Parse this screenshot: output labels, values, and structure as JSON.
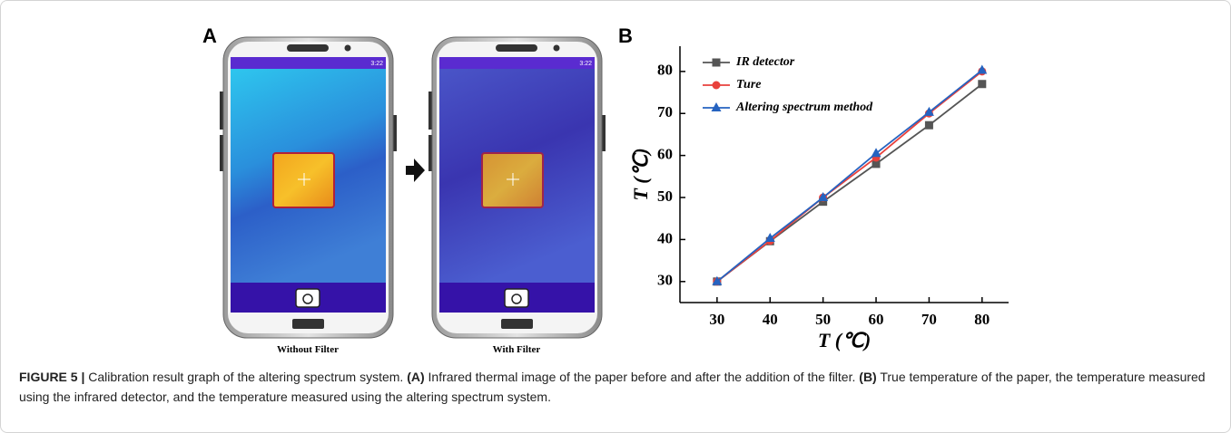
{
  "panel_a": {
    "label": "A",
    "phones": [
      {
        "time": "3:22",
        "caption": "Without Filter"
      },
      {
        "time": "3:22",
        "caption": "With Filter"
      }
    ]
  },
  "panel_b": {
    "label": "B"
  },
  "chart_data": {
    "type": "line",
    "x_label": "T (℃)",
    "y_label": "T (℃)",
    "x": [
      30,
      40,
      50,
      60,
      70,
      80
    ],
    "series": [
      {
        "name": "IR detector",
        "color": "#555555",
        "marker": "square",
        "values": [
          30,
          39.6,
          49,
          58,
          67.2,
          77
        ]
      },
      {
        "name": "Ture",
        "color": "#e8413c",
        "marker": "circle",
        "values": [
          30,
          39.7,
          50,
          59.5,
          70,
          80
        ]
      },
      {
        "name": "Altering spectrum method",
        "color": "#2563c0",
        "marker": "triangle",
        "values": [
          30,
          40.3,
          50,
          60.5,
          70.3,
          80.3
        ]
      }
    ],
    "xlim": [
      23,
      85
    ],
    "ylim": [
      25,
      86
    ],
    "xticks": [
      30,
      40,
      50,
      60,
      70,
      80
    ],
    "yticks": [
      30,
      40,
      50,
      60,
      70,
      80
    ],
    "legend": "upper left"
  },
  "caption": {
    "label": "FIGURE 5 |",
    "intro": "Calibration result graph of the altering spectrum system.",
    "a_label": "(A)",
    "a_text": "Infrared thermal image of the paper before and after the addition of the filter.",
    "b_label": "(B)",
    "b_text": "True temperature of the paper, the temperature measured using the infrared detector, and the temperature measured using the altering spectrum system."
  }
}
